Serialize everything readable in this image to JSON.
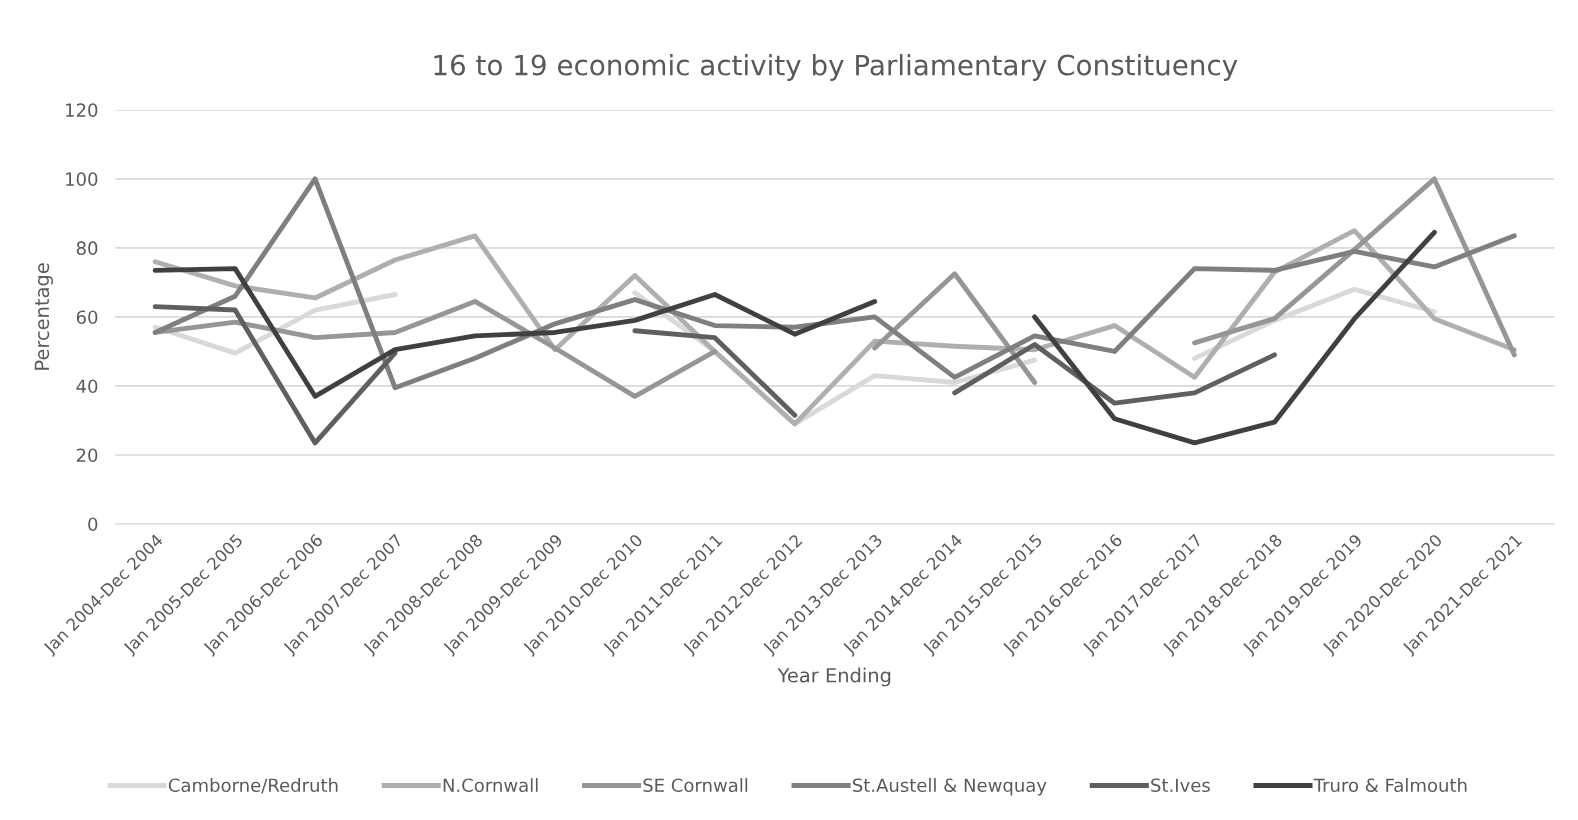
{
  "chart_data": {
    "type": "line",
    "title": "16 to 19 economic activity by Parliamentary Constituency",
    "xlabel": "Year Ending",
    "ylabel": "Percentage",
    "categories": [
      "Jan 2004-Dec 2004",
      "Jan 2005-Dec 2005",
      "Jan 2006-Dec 2006",
      "Jan 2007-Dec 2007",
      "Jan 2008-Dec 2008",
      "Jan 2009-Dec 2009",
      "Jan 2010-Dec 2010",
      "Jan 2011-Dec 2011",
      "Jan 2012-Dec 2012",
      "Jan 2013-Dec 2013",
      "Jan 2014-Dec 2014",
      "Jan 2015-Dec 2015",
      "Jan 2016-Dec 2016",
      "Jan 2017-Dec 2017",
      "Jan 2018-Dec 2018",
      "Jan 2019-Dec 2019",
      "Jan 2020-Dec 2020",
      "Jan 2021-Dec 2021"
    ],
    "series": [
      {
        "name": "Camborne/Redruth",
        "color": "#d9d9d9",
        "values": [
          57,
          49.5,
          62,
          66.5,
          null,
          null,
          67,
          50,
          29,
          43,
          41,
          47.5,
          null,
          48,
          59,
          68,
          61.5,
          null
        ]
      },
      {
        "name": "N.Cornwall",
        "color": "#afafaf",
        "values": [
          76,
          69,
          65.5,
          76.5,
          83.5,
          50.5,
          72,
          50,
          29,
          53,
          51.5,
          50.5,
          57.5,
          42.5,
          73,
          85,
          59.5,
          50.5
        ]
      },
      {
        "name": "SE Cornwall",
        "color": "#969696",
        "values": [
          55.5,
          58.5,
          54,
          55.5,
          64.5,
          51,
          37,
          50,
          null,
          51,
          72.5,
          41,
          null,
          52.5,
          59.5,
          79.5,
          100,
          49
        ]
      },
      {
        "name": "St.Austell & Newquay",
        "color": "#7f7f7f",
        "values": [
          55.5,
          66,
          100,
          39.5,
          48,
          58,
          65,
          57.5,
          57,
          60,
          42.5,
          54.5,
          50,
          74,
          73.5,
          79,
          74.5,
          83.5
        ]
      },
      {
        "name": "St.Ives",
        "color": "#5f5f5f",
        "values": [
          63,
          62,
          23.5,
          49.5,
          null,
          null,
          56,
          54,
          31.5,
          null,
          38,
          52,
          35,
          38,
          49,
          null,
          null,
          null
        ]
      },
      {
        "name": "Truro & Falmouth",
        "color": "#404040",
        "values": [
          73.5,
          74,
          37,
          50.5,
          54.5,
          55.5,
          59,
          66.5,
          55,
          64.5,
          null,
          60,
          30.5,
          23.5,
          29.5,
          59.5,
          84.5,
          null
        ]
      }
    ],
    "ylim": [
      0,
      120
    ],
    "yticks": [
      0,
      20,
      40,
      60,
      80,
      100,
      120
    ],
    "grid": "y",
    "legend": "bottom",
    "marker": "none",
    "line_style": "solid"
  }
}
